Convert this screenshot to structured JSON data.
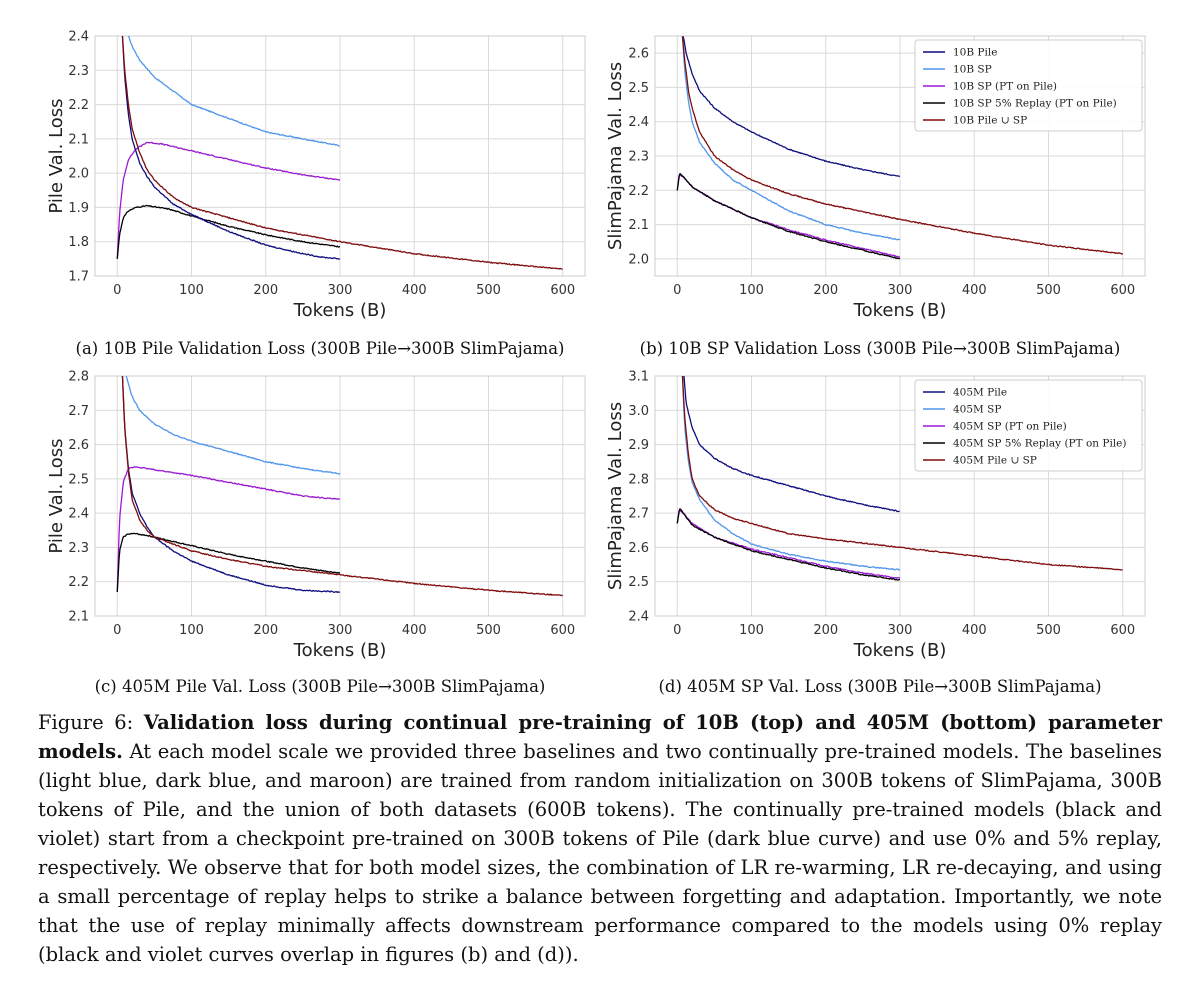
{
  "figure": {
    "label": "Figure 6:",
    "bold_text": "Validation loss during continual pre-training of 10B (top) and 405M (bottom) parameter models.",
    "body_text": "At each model scale we provided three baselines and two continually pre-trained models. The baselines (light blue, dark blue, and maroon) are trained from random initialization on 300B tokens of SlimPajama, 300B tokens of Pile, and the union of both datasets (600B tokens). The continually pre-trained models (black and violet) start from a checkpoint pre-trained on 300B tokens of Pile (dark blue curve) and use 0% and 5% replay, respectively. We observe that for both model sizes, the combination of LR re-warming, LR re-decaying, and using a small percentage of replay helps to strike a balance between forgetting and adaptation. Importantly, we note that the use of replay minimally affects downstream performance compared to the models using 0% replay (black and violet curves overlap in figures (b) and (d))."
  },
  "colors": {
    "pile": "#0d0d7e",
    "sp": "#4f95eb",
    "sp_pt": "#9a1ad0",
    "replay": "#000000",
    "union": "#7f0c0c"
  },
  "chart_data": [
    {
      "id": "a",
      "type": "line",
      "subcaption": "(a) 10B Pile Validation Loss (300B Pile→300B SlimPajama)",
      "xlabel": "Tokens (B)",
      "ylabel": "Pile Val. Loss",
      "xlim": [
        -30,
        630
      ],
      "ylim": [
        1.7,
        2.4
      ],
      "xticks": [
        0,
        100,
        200,
        300,
        400,
        500,
        600
      ],
      "yticks": [
        "1.7",
        "1.8",
        "1.9",
        "2.0",
        "2.1",
        "2.2",
        "2.3",
        "2.4"
      ],
      "grid": true,
      "legend": null,
      "series": [
        {
          "color_key": "sp",
          "x": [
            15,
            20,
            30,
            50,
            75,
            100,
            150,
            200,
            250,
            300
          ],
          "y": [
            2.4,
            2.37,
            2.33,
            2.28,
            2.24,
            2.2,
            2.16,
            2.12,
            2.1,
            2.08
          ]
        },
        {
          "color_key": "sp_pt",
          "x": [
            0,
            3,
            8,
            15,
            25,
            40,
            60,
            100,
            150,
            200,
            250,
            300
          ],
          "y": [
            1.75,
            1.88,
            1.98,
            2.04,
            2.07,
            2.09,
            2.085,
            2.065,
            2.04,
            2.015,
            1.995,
            1.98
          ]
        },
        {
          "color_key": "replay",
          "x": [
            0,
            3,
            8,
            15,
            25,
            40,
            70,
            100,
            150,
            200,
            250,
            300
          ],
          "y": [
            1.75,
            1.82,
            1.87,
            1.89,
            1.9,
            1.905,
            1.895,
            1.875,
            1.845,
            1.82,
            1.8,
            1.785
          ]
        },
        {
          "color_key": "pile",
          "x": [
            7,
            10,
            15,
            20,
            30,
            40,
            50,
            75,
            100,
            150,
            200,
            250,
            275,
            300
          ],
          "y": [
            2.4,
            2.28,
            2.17,
            2.1,
            2.03,
            1.99,
            1.96,
            1.91,
            1.88,
            1.83,
            1.79,
            1.765,
            1.755,
            1.75
          ]
        },
        {
          "color_key": "union",
          "x": [
            7,
            10,
            15,
            20,
            30,
            40,
            50,
            75,
            100,
            150,
            200,
            300,
            400,
            500,
            600
          ],
          "y": [
            2.4,
            2.3,
            2.2,
            2.13,
            2.06,
            2.01,
            1.98,
            1.93,
            1.9,
            1.87,
            1.84,
            1.8,
            1.765,
            1.74,
            1.72
          ]
        }
      ]
    },
    {
      "id": "b",
      "type": "line",
      "subcaption": "(b) 10B SP Validation Loss (300B Pile→300B SlimPajama)",
      "xlabel": "Tokens (B)",
      "ylabel": "SlimPajama Val. Loss",
      "xlim": [
        -30,
        630
      ],
      "ylim": [
        1.95,
        2.65
      ],
      "xticks": [
        0,
        100,
        200,
        300,
        400,
        500,
        600
      ],
      "yticks": [
        "2.0",
        "2.1",
        "2.2",
        "2.3",
        "2.4",
        "2.5",
        "2.6"
      ],
      "grid": true,
      "legend": "top-right",
      "series": [
        {
          "name": "10B Pile",
          "color_key": "pile",
          "x": [
            8,
            12,
            20,
            30,
            50,
            75,
            100,
            150,
            200,
            250,
            300
          ],
          "y": [
            2.65,
            2.6,
            2.54,
            2.49,
            2.44,
            2.4,
            2.37,
            2.32,
            2.285,
            2.26,
            2.24
          ]
        },
        {
          "name": "10B SP",
          "color_key": "sp",
          "x": [
            7,
            10,
            15,
            20,
            30,
            50,
            75,
            100,
            150,
            200,
            250,
            300
          ],
          "y": [
            2.65,
            2.55,
            2.46,
            2.4,
            2.34,
            2.28,
            2.23,
            2.2,
            2.14,
            2.1,
            2.075,
            2.055
          ]
        },
        {
          "name": "10B SP (PT on Pile)",
          "color_key": "sp_pt",
          "x": [
            0,
            3,
            8,
            20,
            50,
            100,
            150,
            200,
            250,
            300
          ],
          "y": [
            2.2,
            2.245,
            2.24,
            2.21,
            2.17,
            2.12,
            2.085,
            2.055,
            2.03,
            2.005
          ]
        },
        {
          "name": "10B SP 5% Replay (PT on Pile)",
          "color_key": "replay",
          "x": [
            0,
            3,
            8,
            20,
            50,
            100,
            150,
            200,
            250,
            300
          ],
          "y": [
            2.2,
            2.25,
            2.24,
            2.21,
            2.17,
            2.12,
            2.08,
            2.05,
            2.025,
            2.0
          ]
        },
        {
          "name": "10B Pile ∪ SP",
          "color_key": "union",
          "x": [
            7,
            10,
            15,
            20,
            30,
            50,
            75,
            100,
            150,
            200,
            300,
            400,
            500,
            600
          ],
          "y": [
            2.65,
            2.58,
            2.49,
            2.44,
            2.37,
            2.3,
            2.26,
            2.23,
            2.19,
            2.16,
            2.115,
            2.075,
            2.04,
            2.015
          ]
        }
      ]
    },
    {
      "id": "c",
      "type": "line",
      "subcaption": "(c) 405M Pile Val. Loss (300B Pile→300B SlimPajama)",
      "xlabel": "Tokens (B)",
      "ylabel": "Pile Val. Loss",
      "xlim": [
        -30,
        630
      ],
      "ylim": [
        2.1,
        2.8
      ],
      "xticks": [
        0,
        100,
        200,
        300,
        400,
        500,
        600
      ],
      "yticks": [
        "2.1",
        "2.2",
        "2.3",
        "2.4",
        "2.5",
        "2.6",
        "2.7",
        "2.8"
      ],
      "grid": true,
      "legend": null,
      "series": [
        {
          "color_key": "sp",
          "x": [
            12,
            20,
            30,
            50,
            75,
            100,
            150,
            200,
            250,
            300
          ],
          "y": [
            2.8,
            2.74,
            2.7,
            2.66,
            2.63,
            2.61,
            2.58,
            2.55,
            2.53,
            2.515
          ]
        },
        {
          "color_key": "sp_pt",
          "x": [
            0,
            3,
            8,
            15,
            25,
            40,
            70,
            100,
            150,
            200,
            250,
            300
          ],
          "y": [
            2.17,
            2.38,
            2.49,
            2.53,
            2.535,
            2.53,
            2.52,
            2.51,
            2.49,
            2.47,
            2.45,
            2.44
          ]
        },
        {
          "color_key": "replay",
          "x": [
            0,
            3,
            8,
            15,
            25,
            40,
            70,
            100,
            150,
            200,
            250,
            300
          ],
          "y": [
            2.17,
            2.29,
            2.33,
            2.34,
            2.34,
            2.335,
            2.32,
            2.305,
            2.28,
            2.26,
            2.24,
            2.225
          ]
        },
        {
          "color_key": "pile",
          "x": [
            7,
            10,
            15,
            20,
            30,
            40,
            50,
            75,
            100,
            150,
            200,
            250,
            300
          ],
          "y": [
            2.8,
            2.65,
            2.53,
            2.46,
            2.4,
            2.36,
            2.33,
            2.29,
            2.26,
            2.22,
            2.19,
            2.175,
            2.17
          ]
        },
        {
          "color_key": "union",
          "x": [
            7,
            10,
            15,
            20,
            30,
            40,
            50,
            75,
            100,
            150,
            200,
            300,
            400,
            500,
            600
          ],
          "y": [
            2.8,
            2.65,
            2.52,
            2.44,
            2.38,
            2.35,
            2.33,
            2.31,
            2.29,
            2.265,
            2.245,
            2.22,
            2.195,
            2.175,
            2.16
          ]
        }
      ]
    },
    {
      "id": "d",
      "type": "line",
      "subcaption": "(d) 405M SP Val. Loss (300B Pile→300B SlimPajama)",
      "xlabel": "Tokens (B)",
      "ylabel": "SlimPajama Val. Loss",
      "xlim": [
        -30,
        630
      ],
      "ylim": [
        2.4,
        3.1
      ],
      "xticks": [
        0,
        100,
        200,
        300,
        400,
        500,
        600
      ],
      "yticks": [
        "2.4",
        "2.5",
        "2.6",
        "2.7",
        "2.8",
        "2.9",
        "3.0",
        "3.1"
      ],
      "grid": true,
      "legend": "top-right",
      "series": [
        {
          "name": "405M Pile",
          "color_key": "pile",
          "x": [
            9,
            12,
            20,
            30,
            50,
            75,
            100,
            150,
            200,
            250,
            300
          ],
          "y": [
            3.1,
            3.02,
            2.95,
            2.9,
            2.86,
            2.83,
            2.81,
            2.78,
            2.75,
            2.725,
            2.705
          ]
        },
        {
          "name": "405M SP",
          "color_key": "sp",
          "x": [
            7,
            10,
            15,
            20,
            30,
            50,
            75,
            100,
            150,
            200,
            250,
            300
          ],
          "y": [
            3.1,
            2.95,
            2.85,
            2.79,
            2.74,
            2.68,
            2.64,
            2.61,
            2.58,
            2.56,
            2.545,
            2.535
          ]
        },
        {
          "name": "405M SP (PT on Pile)",
          "color_key": "sp_pt",
          "x": [
            0,
            3,
            8,
            20,
            50,
            100,
            150,
            200,
            250,
            300
          ],
          "y": [
            2.67,
            2.71,
            2.7,
            2.67,
            2.63,
            2.595,
            2.57,
            2.545,
            2.525,
            2.51
          ]
        },
        {
          "name": "405M SP 5% Replay (PT on Pile)",
          "color_key": "replay",
          "x": [
            0,
            3,
            8,
            20,
            50,
            100,
            150,
            200,
            250,
            300
          ],
          "y": [
            2.67,
            2.715,
            2.7,
            2.665,
            2.63,
            2.59,
            2.565,
            2.54,
            2.52,
            2.505
          ]
        },
        {
          "name": "405M Pile ∪ SP",
          "color_key": "union",
          "x": [
            7,
            10,
            15,
            20,
            30,
            50,
            75,
            100,
            150,
            200,
            300,
            400,
            500,
            600
          ],
          "y": [
            3.1,
            2.98,
            2.87,
            2.8,
            2.75,
            2.71,
            2.685,
            2.67,
            2.64,
            2.625,
            2.6,
            2.575,
            2.55,
            2.535
          ]
        }
      ]
    }
  ]
}
